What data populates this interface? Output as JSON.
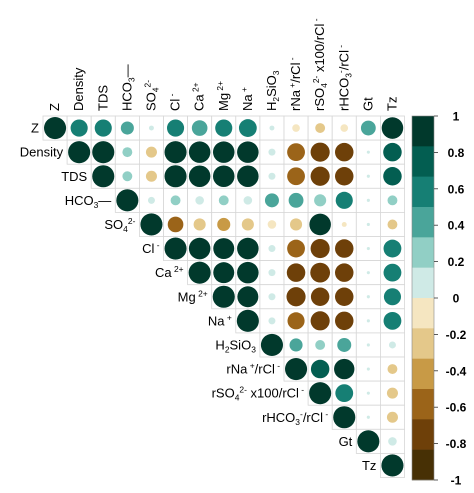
{
  "chart_data": {
    "type": "heatmap",
    "variables": [
      {
        "id": "Z",
        "parts": [
          {
            "t": "Z"
          }
        ]
      },
      {
        "id": "Density",
        "parts": [
          {
            "t": "Density"
          }
        ]
      },
      {
        "id": "TDS",
        "parts": [
          {
            "t": "TDS"
          }
        ]
      },
      {
        "id": "HCO3-",
        "parts": [
          {
            "t": "HCO"
          },
          {
            "t": "3",
            "s": "sub"
          },
          {
            "t": "—"
          }
        ]
      },
      {
        "id": "SO42-",
        "parts": [
          {
            "t": "SO"
          },
          {
            "t": "4",
            "s": "sub"
          },
          {
            "t": "2-",
            "s": "sup"
          }
        ]
      },
      {
        "id": "Cl-",
        "parts": [
          {
            "t": "Cl"
          },
          {
            "t": " -",
            "s": "sup"
          }
        ]
      },
      {
        "id": "Ca2+",
        "parts": [
          {
            "t": "Ca"
          },
          {
            "t": " 2+",
            "s": "sup"
          }
        ]
      },
      {
        "id": "Mg2+",
        "parts": [
          {
            "t": "Mg"
          },
          {
            "t": " 2+",
            "s": "sup"
          }
        ]
      },
      {
        "id": "Na+",
        "parts": [
          {
            "t": "Na"
          },
          {
            "t": " +",
            "s": "sup"
          }
        ]
      },
      {
        "id": "H2SiO3",
        "parts": [
          {
            "t": "H"
          },
          {
            "t": "2",
            "s": "sub"
          },
          {
            "t": "SiO"
          },
          {
            "t": "3",
            "s": "sub"
          }
        ]
      },
      {
        "id": "rNa+/rCl-",
        "parts": [
          {
            "t": "rNa"
          },
          {
            "t": " +",
            "s": "sup"
          },
          {
            "t": "/rCl"
          },
          {
            "t": " -",
            "s": "sup"
          }
        ]
      },
      {
        "id": "rSO42-x100/rCl-",
        "parts": [
          {
            "t": "rSO"
          },
          {
            "t": "4",
            "s": "sub"
          },
          {
            "t": "2-",
            "s": "sup"
          },
          {
            "t": " x100/rCl"
          },
          {
            "t": " -",
            "s": "sup"
          }
        ]
      },
      {
        "id": "rHCO3-/rCl-",
        "parts": [
          {
            "t": "rHCO"
          },
          {
            "t": "3",
            "s": "sub"
          },
          {
            "t": "-",
            "s": "sup"
          },
          {
            "t": "/rCl"
          },
          {
            "t": " -",
            "s": "sup"
          }
        ]
      },
      {
        "id": "Gt",
        "parts": [
          {
            "t": "Gt"
          }
        ]
      },
      {
        "id": "Tz",
        "parts": [
          {
            "t": "Tz"
          }
        ]
      }
    ],
    "matrix": [
      [
        1,
        0.6,
        0.6,
        0.35,
        0.05,
        0.6,
        0.5,
        0.6,
        0.65,
        0.05,
        -0.12,
        -0.2,
        -0.12,
        0.45,
        0.95
      ],
      [
        null,
        1,
        1,
        0.2,
        -0.25,
        1,
        0.95,
        0.95,
        0.95,
        0.1,
        -0.65,
        -0.75,
        -0.7,
        0.02,
        0.7
      ],
      [
        null,
        null,
        1,
        0.2,
        -0.25,
        1,
        0.95,
        0.95,
        0.95,
        0.1,
        -0.65,
        -0.75,
        -0.7,
        0.02,
        0.7
      ],
      [
        null,
        null,
        null,
        1,
        0.1,
        0.2,
        0.15,
        0.2,
        0.15,
        0.4,
        0.45,
        0.3,
        0.6,
        0.02,
        0.2
      ],
      [
        null,
        null,
        null,
        null,
        1,
        -0.5,
        -0.3,
        -0.35,
        -0.3,
        -0.15,
        -0.3,
        0.95,
        -0.05,
        0.02,
        -0.2
      ],
      [
        null,
        null,
        null,
        null,
        null,
        1,
        0.95,
        0.9,
        0.95,
        0.1,
        -0.65,
        -0.75,
        -0.7,
        0.02,
        0.65
      ],
      [
        null,
        null,
        null,
        null,
        null,
        null,
        1,
        0.9,
        0.95,
        0.1,
        -0.7,
        -0.8,
        -0.7,
        0.02,
        0.65
      ],
      [
        null,
        null,
        null,
        null,
        null,
        null,
        null,
        1,
        0.9,
        0.1,
        -0.75,
        -0.7,
        -0.7,
        0.02,
        0.6
      ],
      [
        null,
        null,
        null,
        null,
        null,
        null,
        null,
        null,
        1,
        0.1,
        -0.6,
        -0.75,
        -0.7,
        0.02,
        0.65
      ],
      [
        null,
        null,
        null,
        null,
        null,
        null,
        null,
        null,
        null,
        1,
        0.35,
        0.2,
        0.4,
        0.02,
        0.1
      ],
      [
        null,
        null,
        null,
        null,
        null,
        null,
        null,
        null,
        null,
        null,
        1,
        0.7,
        0.85,
        0.02,
        -0.2
      ],
      [
        null,
        null,
        null,
        null,
        null,
        null,
        null,
        null,
        null,
        null,
        null,
        1,
        0.65,
        0.02,
        -0.25
      ],
      [
        null,
        null,
        null,
        null,
        null,
        null,
        null,
        null,
        null,
        null,
        null,
        null,
        1,
        0.02,
        -0.25
      ],
      [
        null,
        null,
        null,
        null,
        null,
        null,
        null,
        null,
        null,
        null,
        null,
        null,
        null,
        1,
        0.15
      ],
      [
        null,
        null,
        null,
        null,
        null,
        null,
        null,
        null,
        null,
        null,
        null,
        null,
        null,
        null,
        1
      ]
    ],
    "colorbar": {
      "range": [
        -1,
        1
      ],
      "tick_labels": [
        "1",
        "0.8",
        "0.6",
        "0.4",
        "0.2",
        "0",
        "-0.2",
        "-0.4",
        "-0.6",
        "-0.8",
        "-1"
      ],
      "colors_high_to_low": [
        "#01392c",
        "#035e51",
        "#167f74",
        "#4aa59a",
        "#91cfc5",
        "#cfeae6",
        "#f5e6c1",
        "#e4c88a",
        "#c89a46",
        "#9b6419",
        "#6e4009",
        "#473005"
      ]
    },
    "legend_position": "right",
    "grid": true
  }
}
